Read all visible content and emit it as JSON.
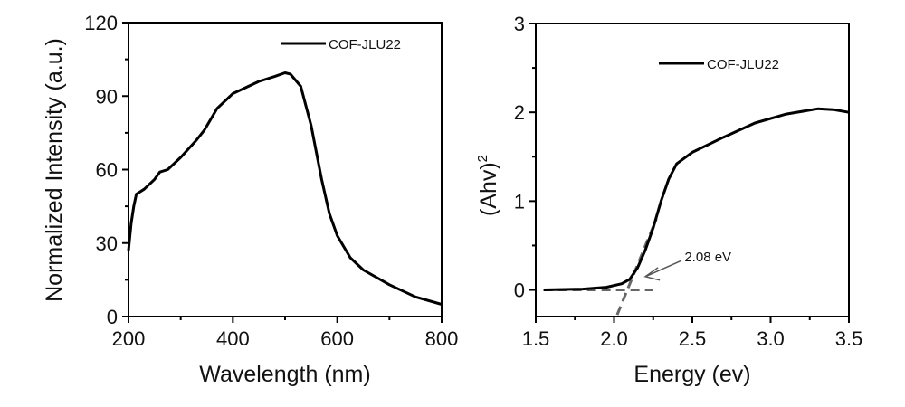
{
  "chart_data": [
    {
      "type": "line",
      "title": "",
      "xlabel": "Wavelength (nm)",
      "ylabel": "Normalized Intensity (a.u.)",
      "xlim": [
        200,
        800
      ],
      "ylim": [
        0,
        120
      ],
      "xticks": [
        "200",
        "400",
        "600",
        "800"
      ],
      "yticks": [
        "0",
        "30",
        "60",
        "90",
        "120"
      ],
      "legend": {
        "position": "top-right",
        "entries": [
          "COF-JLU22"
        ]
      },
      "series": [
        {
          "name": "COF-JLU22",
          "color": "#000000",
          "x": [
            200,
            205,
            210,
            215,
            230,
            250,
            260,
            275,
            300,
            330,
            345,
            370,
            400,
            450,
            480,
            500,
            510,
            530,
            550,
            570,
            585,
            600,
            625,
            650,
            700,
            750,
            800
          ],
          "y": [
            27,
            38,
            45,
            50,
            52,
            56,
            59,
            60,
            65,
            72,
            76,
            85,
            91,
            96,
            98,
            99.5,
            99,
            94,
            78,
            56,
            42,
            33,
            24,
            19,
            13,
            8,
            5
          ]
        }
      ]
    },
    {
      "type": "line",
      "title": "",
      "xlabel": "Energy (ev)",
      "ylabel": "(Ahv)",
      "ylabel_sup": "2",
      "xlim": [
        1.5,
        3.5
      ],
      "ylim": [
        -0.3,
        3
      ],
      "xticks": [
        "1.5",
        "2.0",
        "2.5",
        "3.0",
        "3.5"
      ],
      "yticks": [
        "0",
        "1",
        "2",
        "3"
      ],
      "legend": {
        "position": "top-right",
        "entries": [
          "COF-JLU22"
        ]
      },
      "series": [
        {
          "name": "COF-JLU22",
          "color": "#000000",
          "x": [
            1.55,
            1.8,
            1.95,
            2.05,
            2.1,
            2.15,
            2.2,
            2.25,
            2.3,
            2.35,
            2.4,
            2.5,
            2.7,
            2.9,
            3.1,
            3.3,
            3.4,
            3.5
          ],
          "y": [
            0,
            0.01,
            0.03,
            0.07,
            0.12,
            0.25,
            0.45,
            0.7,
            1.0,
            1.25,
            1.42,
            1.55,
            1.72,
            1.88,
            1.98,
            2.04,
            2.03,
            2.0
          ]
        }
      ],
      "fit_lines": [
        {
          "name": "baseline",
          "x": [
            1.55,
            2.25
          ],
          "y": [
            0,
            0
          ],
          "color": "#666666"
        },
        {
          "name": "tangent",
          "x": [
            2.02,
            2.27
          ],
          "y": [
            -0.28,
            0.8
          ],
          "color": "#666666"
        }
      ],
      "annotation": {
        "text": "2.08 eV",
        "x": 2.45,
        "y": 0.38,
        "arrow_to": [
          2.2,
          0.15
        ]
      }
    }
  ]
}
